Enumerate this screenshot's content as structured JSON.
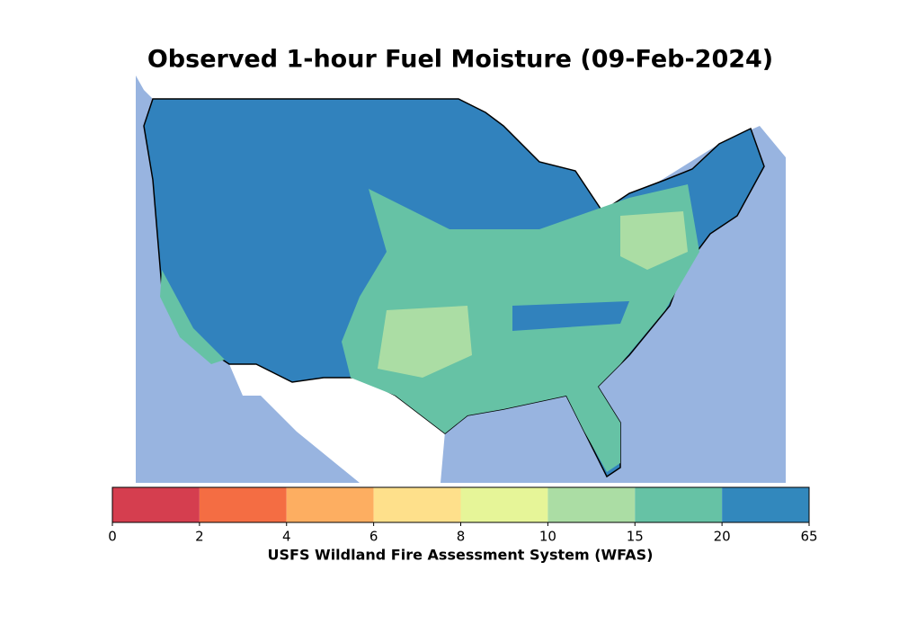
{
  "title": "Observed 1-hour Fuel Moisture (09-Feb-2024)",
  "colorbar": {
    "label": "USFS Wildland Fire Assessment System (WFAS)",
    "ticks": [
      0,
      2,
      4,
      6,
      8,
      10,
      15,
      20,
      65
    ],
    "colors": [
      "#d53e4f",
      "#f46d43",
      "#fdae61",
      "#fee08b",
      "#e6f598",
      "#abdda4",
      "#66c2a5",
      "#3288bd"
    ]
  }
}
